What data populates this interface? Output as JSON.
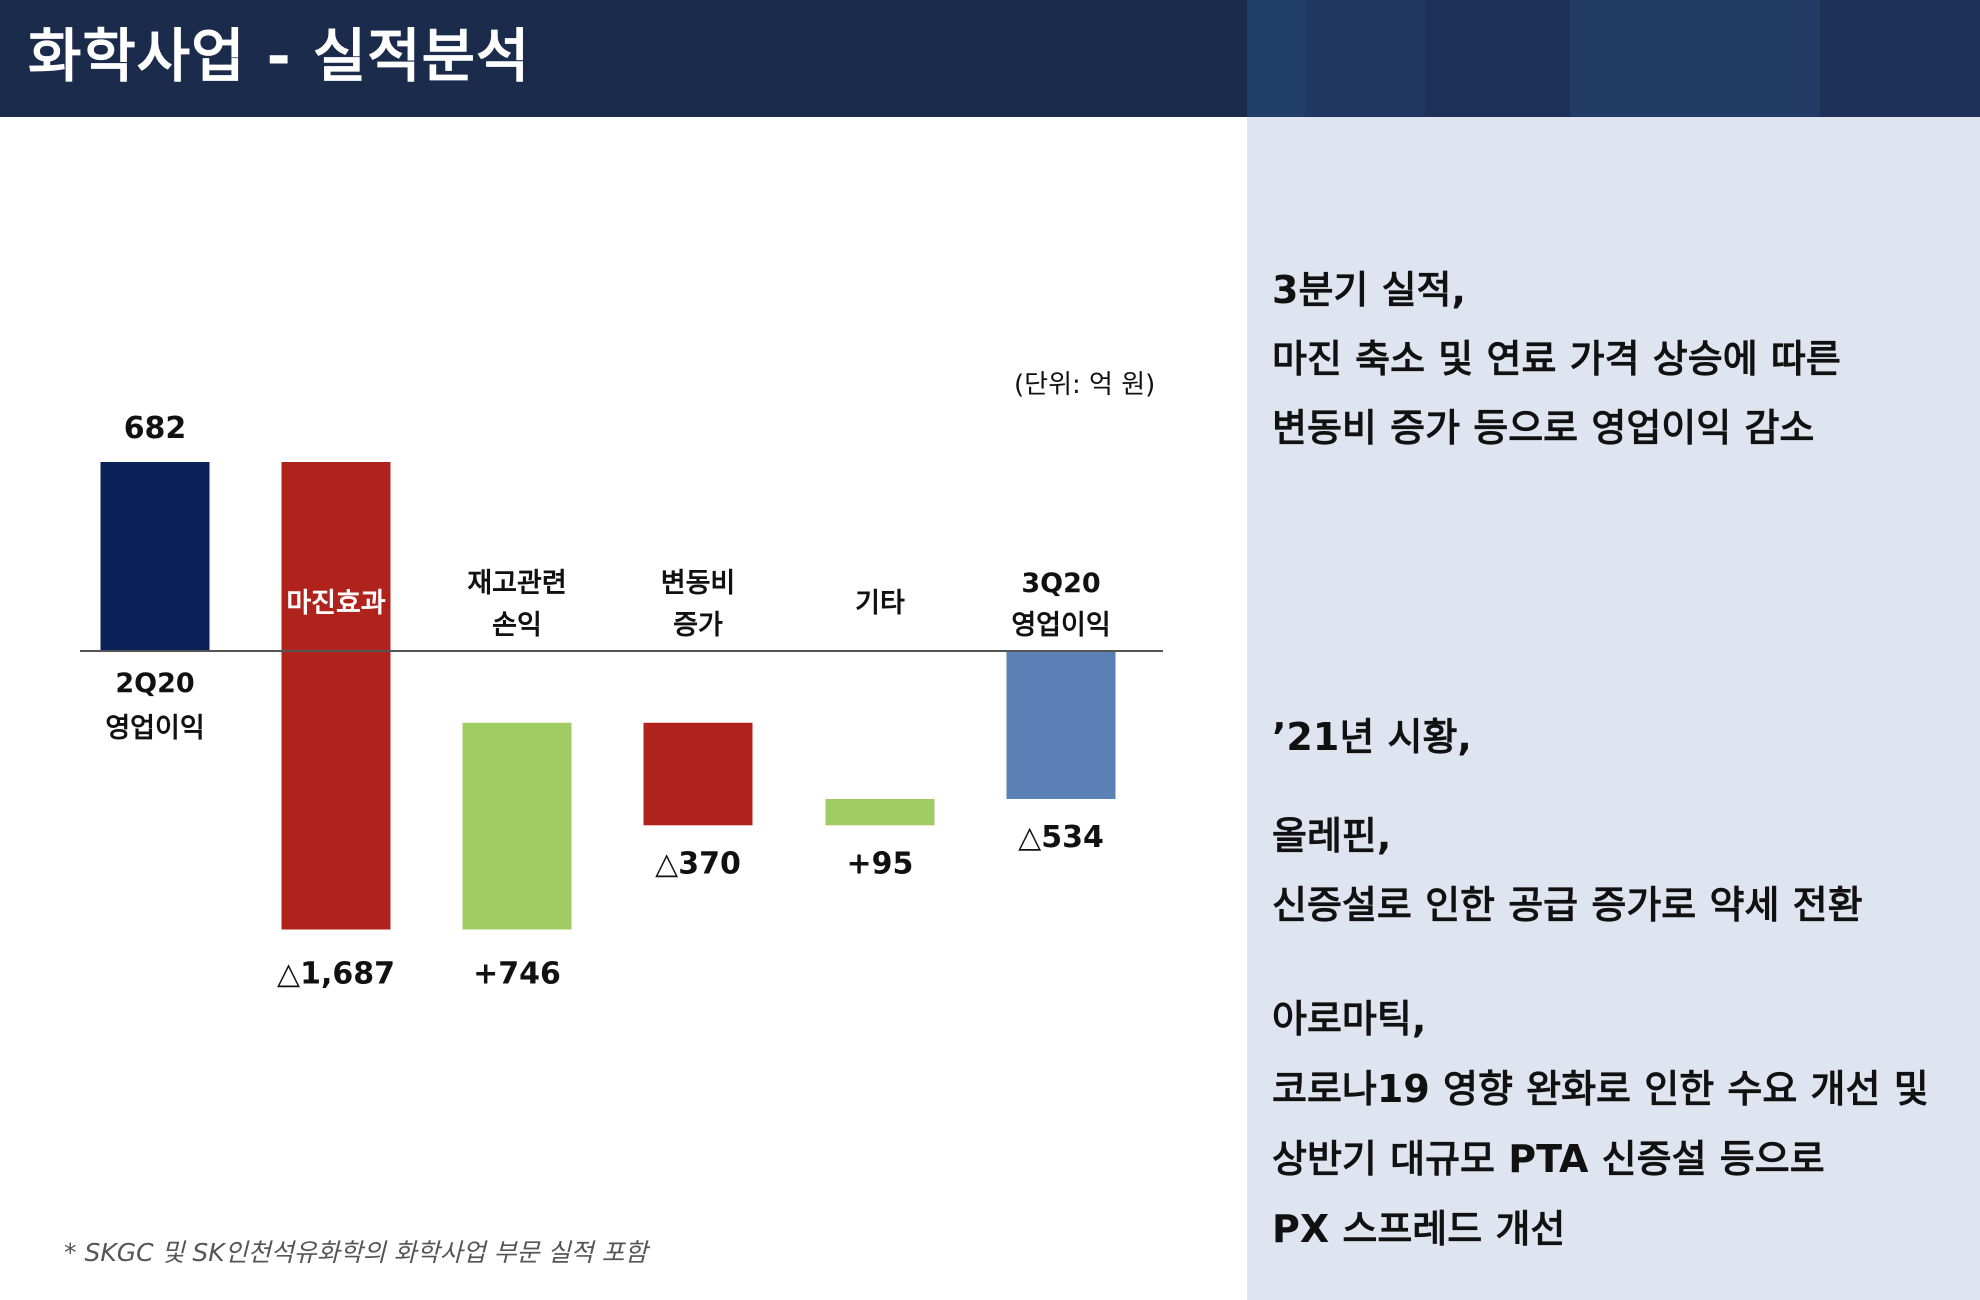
{
  "page_title": "화학사업 - 실적분석",
  "colors": {
    "header_bg": "#1b2b4b",
    "panel_bg": "#dfe5f0",
    "start_bar": "#0b2056",
    "negative": "#b0231c",
    "positive": "#a1cc63",
    "end_bar": "#5b80b6"
  },
  "chart_unit": "(단위: 억 원)",
  "chart_data": {
    "type": "bar",
    "subtype": "waterfall",
    "unit": "(단위: 억 원)",
    "categories": [
      [
        "2Q20",
        "영업이익"
      ],
      [
        "마진효과"
      ],
      [
        "재고관련",
        "손익"
      ],
      [
        "변동비",
        "증가"
      ],
      [
        "기타"
      ],
      [
        "3Q20",
        "영업이익"
      ]
    ],
    "values": [
      682,
      -1687,
      746,
      -370,
      95,
      -534
    ],
    "value_labels": [
      "682",
      "△1,687",
      "+746",
      "△370",
      "+95",
      "△534"
    ],
    "measures": [
      "absolute",
      "relative",
      "relative",
      "relative",
      "relative",
      "total"
    ],
    "ylim": [
      -1040,
      682
    ],
    "grid": false,
    "legend": "none"
  },
  "footnote": "* SKGC 및 SK인천석유화학의 화학사업 부문 실적 포함",
  "panel": {
    "q3_lines": [
      "3분기 실적,",
      "마진 축소 및 연료 가격 상승에 따른",
      "변동비 증가 등으로 영업이익 감소"
    ],
    "outlook_title": "’21년 시황,",
    "olefin_title": "올레핀,",
    "olefin_text": "신증설로 인한 공급 증가로 약세 전환",
    "aromatic_title": "아로마틱,",
    "aromatic_lines": [
      "코로나19 영향 완화로 인한 수요 개선 및",
      "상반기 대규모 PTA 신증설 등으로",
      "PX 스프레드 개선"
    ]
  }
}
